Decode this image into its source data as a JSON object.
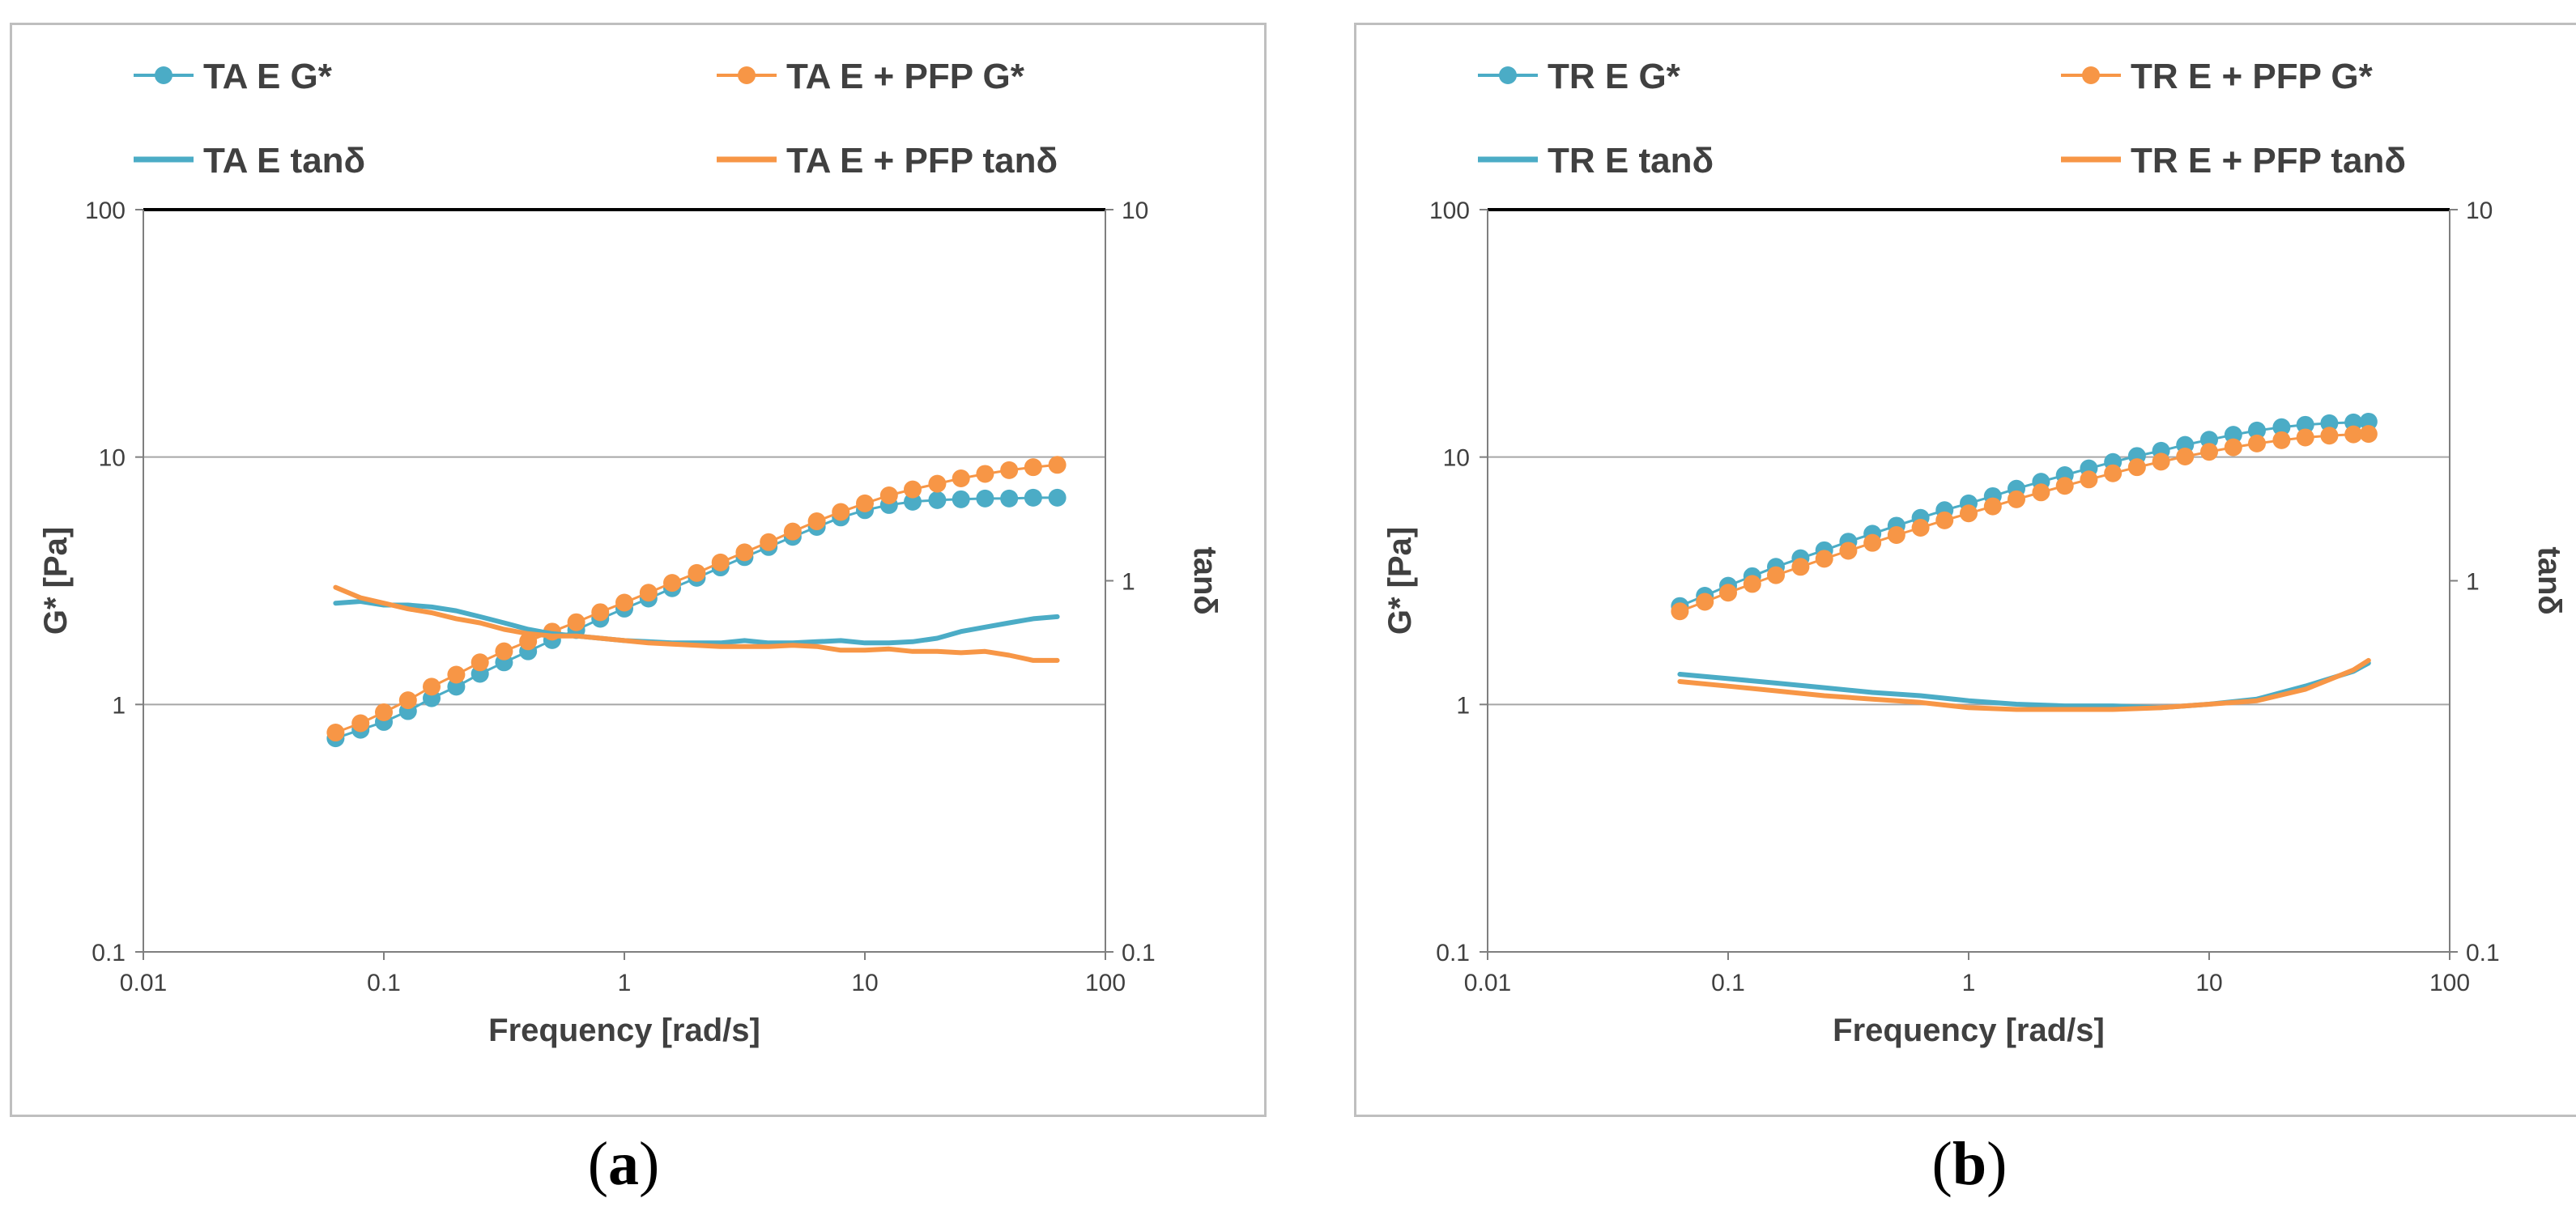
{
  "chart_data": [
    {
      "type": "line",
      "panel_label": "a",
      "xlabel": "Frequency [rad/s]",
      "ylabel": "G* [Pa]",
      "y2label": "tanδ",
      "x_scale": "log",
      "y_scale": "log",
      "y2_scale": "log",
      "xlim": [
        0.01,
        100
      ],
      "ylim": [
        0.1,
        100
      ],
      "y2lim": [
        0.1,
        10
      ],
      "xticks": [
        "0.01",
        "0.1",
        "1",
        "10",
        "100"
      ],
      "yticks": [
        "0.1",
        "1",
        "10",
        "100"
      ],
      "y2ticks": [
        "0.1",
        "1",
        "10"
      ],
      "grid": "horizontal",
      "legend_position": "top",
      "series": [
        {
          "name": "TA E G*",
          "axis": "left",
          "marker": true,
          "color": "#4bacc6",
          "x": [
            0.063,
            0.08,
            0.1,
            0.126,
            0.158,
            0.2,
            0.251,
            0.316,
            0.398,
            0.501,
            0.631,
            0.794,
            1,
            1.26,
            1.58,
            2,
            2.51,
            3.16,
            3.98,
            5.01,
            6.31,
            7.94,
            10,
            12.6,
            15.8,
            20,
            25.1,
            31.6,
            39.8,
            50.1,
            63.1
          ],
          "values": [
            0.73,
            0.79,
            0.85,
            0.94,
            1.06,
            1.18,
            1.33,
            1.48,
            1.64,
            1.82,
            2.0,
            2.22,
            2.44,
            2.68,
            2.95,
            3.25,
            3.58,
            3.94,
            4.33,
            4.76,
            5.22,
            5.7,
            6.1,
            6.4,
            6.6,
            6.7,
            6.75,
            6.8,
            6.8,
            6.85,
            6.85
          ]
        },
        {
          "name": "TA E + PFP G*",
          "axis": "left",
          "marker": true,
          "color": "#f79646",
          "x": [
            0.063,
            0.08,
            0.1,
            0.126,
            0.158,
            0.2,
            0.251,
            0.316,
            0.398,
            0.501,
            0.631,
            0.794,
            1,
            1.26,
            1.58,
            2,
            2.51,
            3.16,
            3.98,
            5.01,
            6.31,
            7.94,
            10,
            12.6,
            15.8,
            20,
            25.1,
            31.6,
            39.8,
            50.1,
            63.1
          ],
          "values": [
            0.77,
            0.84,
            0.93,
            1.04,
            1.18,
            1.32,
            1.48,
            1.64,
            1.8,
            1.97,
            2.15,
            2.36,
            2.58,
            2.83,
            3.1,
            3.4,
            3.75,
            4.12,
            4.53,
            5.0,
            5.5,
            6.0,
            6.5,
            7.0,
            7.4,
            7.8,
            8.2,
            8.55,
            8.85,
            9.1,
            9.3
          ]
        },
        {
          "name": "TA E tanδ",
          "axis": "right",
          "marker": false,
          "color": "#4bacc6",
          "x": [
            0.063,
            0.08,
            0.1,
            0.126,
            0.158,
            0.2,
            0.251,
            0.316,
            0.398,
            0.501,
            0.631,
            0.794,
            1,
            1.26,
            1.58,
            2,
            2.51,
            3.16,
            3.98,
            5.01,
            6.31,
            7.94,
            10,
            12.6,
            15.8,
            20,
            25.1,
            31.6,
            39.8,
            50.1,
            63.1
          ],
          "values": [
            0.87,
            0.88,
            0.86,
            0.86,
            0.85,
            0.83,
            0.8,
            0.77,
            0.74,
            0.72,
            0.71,
            0.7,
            0.69,
            0.685,
            0.68,
            0.68,
            0.68,
            0.69,
            0.68,
            0.68,
            0.685,
            0.69,
            0.68,
            0.68,
            0.685,
            0.7,
            0.73,
            0.75,
            0.77,
            0.79,
            0.8
          ]
        },
        {
          "name": "TA E + PFP tanδ",
          "axis": "right",
          "marker": false,
          "color": "#f79646",
          "x": [
            0.063,
            0.08,
            0.1,
            0.126,
            0.158,
            0.2,
            0.251,
            0.316,
            0.398,
            0.501,
            0.631,
            0.794,
            1,
            1.26,
            1.58,
            2,
            2.51,
            3.16,
            3.98,
            5.01,
            6.31,
            7.94,
            10,
            12.6,
            15.8,
            20,
            25.1,
            31.6,
            39.8,
            50.1,
            63.1
          ],
          "values": [
            0.96,
            0.9,
            0.87,
            0.84,
            0.82,
            0.79,
            0.77,
            0.74,
            0.72,
            0.71,
            0.71,
            0.7,
            0.69,
            0.68,
            0.675,
            0.67,
            0.665,
            0.665,
            0.665,
            0.67,
            0.665,
            0.65,
            0.65,
            0.655,
            0.645,
            0.645,
            0.64,
            0.645,
            0.63,
            0.61,
            0.61
          ]
        }
      ]
    },
    {
      "type": "line",
      "panel_label": "b",
      "xlabel": "Frequency [rad/s]",
      "ylabel": "G* [Pa]",
      "y2label": "tanδ",
      "x_scale": "log",
      "y_scale": "log",
      "y2_scale": "log",
      "xlim": [
        0.01,
        100
      ],
      "ylim": [
        0.1,
        100
      ],
      "y2lim": [
        0.1,
        10
      ],
      "xticks": [
        "0.01",
        "0.1",
        "1",
        "10",
        "100"
      ],
      "yticks": [
        "0.1",
        "1",
        "10",
        "100"
      ],
      "y2ticks": [
        "0.1",
        "1",
        "10"
      ],
      "grid": "horizontal",
      "legend_position": "top",
      "series": [
        {
          "name": "TR E G*",
          "axis": "left",
          "marker": true,
          "color": "#4bacc6",
          "x": [
            0.063,
            0.08,
            0.1,
            0.126,
            0.158,
            0.2,
            0.251,
            0.316,
            0.398,
            0.501,
            0.631,
            0.794,
            1,
            1.26,
            1.58,
            2,
            2.51,
            3.16,
            3.98,
            5.01,
            6.31,
            7.94,
            10,
            12.6,
            15.8,
            20,
            25.1,
            31.6,
            39.8,
            46
          ],
          "values": [
            2.5,
            2.75,
            3.02,
            3.3,
            3.6,
            3.9,
            4.2,
            4.55,
            4.9,
            5.28,
            5.68,
            6.1,
            6.5,
            6.95,
            7.45,
            7.95,
            8.45,
            9.0,
            9.55,
            10.1,
            10.6,
            11.2,
            11.75,
            12.3,
            12.8,
            13.2,
            13.5,
            13.7,
            13.8,
            13.9
          ]
        },
        {
          "name": "TR E + PFP G*",
          "axis": "left",
          "marker": true,
          "color": "#f79646",
          "x": [
            0.063,
            0.08,
            0.1,
            0.126,
            0.158,
            0.2,
            0.251,
            0.316,
            0.398,
            0.501,
            0.631,
            0.794,
            1,
            1.26,
            1.58,
            2,
            2.51,
            3.16,
            3.98,
            5.01,
            6.31,
            7.94,
            10,
            12.6,
            15.8,
            20,
            25.1,
            31.6,
            39.8,
            46
          ],
          "values": [
            2.38,
            2.6,
            2.83,
            3.07,
            3.33,
            3.6,
            3.88,
            4.18,
            4.5,
            4.84,
            5.18,
            5.55,
            5.92,
            6.32,
            6.75,
            7.2,
            7.65,
            8.12,
            8.6,
            9.1,
            9.58,
            10.05,
            10.5,
            10.95,
            11.35,
            11.7,
            12.0,
            12.2,
            12.35,
            12.4
          ]
        },
        {
          "name": "TR E tanδ",
          "axis": "right",
          "marker": false,
          "color": "#4bacc6",
          "x": [
            0.063,
            0.1,
            0.158,
            0.251,
            0.398,
            0.631,
            1,
            1.58,
            2.51,
            3.98,
            6.31,
            10,
            15.8,
            25.1,
            39.8,
            46
          ],
          "values": [
            0.56,
            0.545,
            0.53,
            0.515,
            0.5,
            0.49,
            0.475,
            0.465,
            0.46,
            0.46,
            0.455,
            0.465,
            0.48,
            0.52,
            0.57,
            0.6
          ]
        },
        {
          "name": "TR E + PFP tanδ",
          "axis": "right",
          "marker": false,
          "color": "#f79646",
          "x": [
            0.063,
            0.1,
            0.158,
            0.251,
            0.398,
            0.631,
            1,
            1.58,
            2.51,
            3.98,
            6.31,
            10,
            15.8,
            25.1,
            39.8,
            46
          ],
          "values": [
            0.535,
            0.52,
            0.505,
            0.49,
            0.48,
            0.47,
            0.455,
            0.45,
            0.45,
            0.45,
            0.455,
            0.465,
            0.475,
            0.51,
            0.575,
            0.61
          ]
        }
      ]
    }
  ]
}
